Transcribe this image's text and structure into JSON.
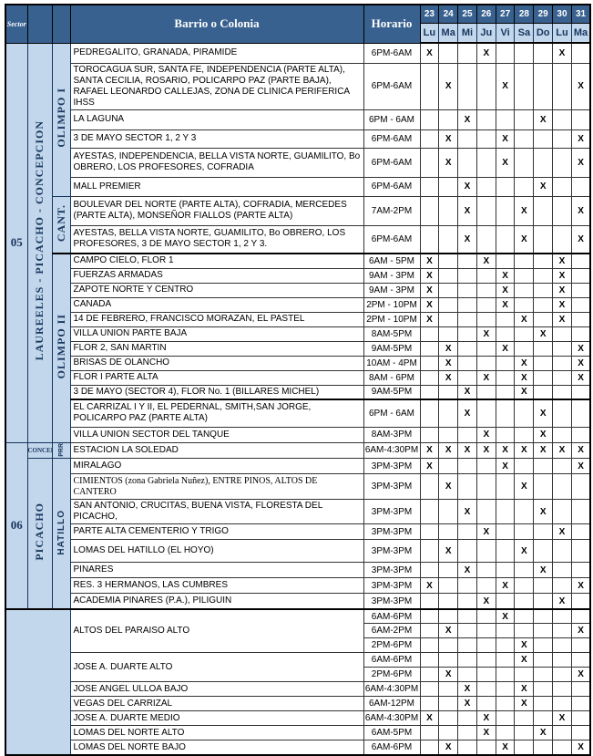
{
  "header": {
    "sector_label": "Sector",
    "barrio_label": "Barrio o Colonia",
    "horario_label": "Horario",
    "dates": [
      "23",
      "24",
      "25",
      "26",
      "27",
      "28",
      "29",
      "30",
      "31"
    ],
    "days": [
      "Lu",
      "Ma",
      "Mi",
      "Ju",
      "Vi",
      "Sa",
      "Do",
      "Lu",
      "Ma"
    ]
  },
  "mark_glyph": "X",
  "colors": {
    "header_bg": "#38618F",
    "light_blue": "#C2D6EC",
    "navy_text": "#17365D",
    "mark_color": "#000000"
  },
  "left_labels": [
    {
      "col": 0,
      "start": 0,
      "span": 20,
      "text": "05",
      "style": "sector-num",
      "name": "sector-05"
    },
    {
      "col": 0,
      "start": 20,
      "span": 9,
      "text": "06",
      "style": "sector-num",
      "name": "sector-06"
    },
    {
      "col": 1,
      "start": 0,
      "span": 20,
      "text": "LAUREELES - PICACHO - CONCEPCION",
      "style": "vlabel",
      "name": "zone-laureeles-picacho-concepcion"
    },
    {
      "col": 1,
      "start": 20,
      "span": 1,
      "text": "CONCEP",
      "style": "hsmall",
      "name": "zone-concep"
    },
    {
      "col": 1,
      "start": 21,
      "span": 8,
      "text": "PICACHO",
      "style": "vlabel",
      "name": "zone-picacho"
    },
    {
      "col": 2,
      "start": 0,
      "span": 6,
      "text": "OLIMPO I",
      "style": "vlabel",
      "name": "subzone-olimpo-1"
    },
    {
      "col": 2,
      "start": 6,
      "span": 2,
      "text": "CANT.",
      "style": "vlabel",
      "name": "subzone-cant"
    },
    {
      "col": 2,
      "start": 8,
      "span": 12,
      "text": "OLIMPO II",
      "style": "vlabel",
      "name": "subzone-olimpo-2"
    },
    {
      "col": 2,
      "start": 20,
      "span": 1,
      "text": "PRR",
      "style": "vsmall",
      "name": "subzone-prr"
    },
    {
      "col": 2,
      "start": 21,
      "span": 8,
      "text": "HATILLO",
      "style": "vlabel-sans",
      "name": "subzone-hatillo"
    },
    {
      "col": 0,
      "start": 29,
      "span": 10,
      "colspan": 3,
      "text": "",
      "style": "blank-merged",
      "name": "bottom-left-blank"
    }
  ],
  "rows": [
    {
      "barrio": "PEDREGALITO, GRANADA, PIRAMIDE",
      "barrio_span": 1,
      "horario": "6PM-6AM",
      "marks": [
        1,
        0,
        0,
        1,
        0,
        0,
        0,
        1,
        0
      ]
    },
    {
      "barrio": "TOROCAGUA SUR, SANTA FE, INDEPENDENCIA (PARTE ALTA), SANTA CECILIA, ROSARIO, POLICARPO PAZ (PARTE BAJA), RAFAEL LEONARDO CALLEJAS, ZONA DE CLINICA PERIFERICA IHSS",
      "barrio_span": 1,
      "horario": "6PM-6AM",
      "marks": [
        0,
        1,
        0,
        0,
        1,
        0,
        0,
        0,
        1
      ]
    },
    {
      "barrio": "LA LAGUNA",
      "barrio_span": 1,
      "horario": "6PM - 6AM",
      "marks": [
        0,
        0,
        1,
        0,
        0,
        0,
        1,
        0,
        0
      ]
    },
    {
      "barrio": "3 DE MAYO SECTOR 1, 2 Y 3",
      "barrio_span": 1,
      "horario": "6PM-6AM",
      "marks": [
        0,
        1,
        0,
        0,
        1,
        0,
        0,
        0,
        1
      ]
    },
    {
      "barrio": "AYESTAS, INDEPENDENCIA, BELLA VISTA NORTE, GUAMILITO, Bo OBRERO, LOS PROFESORES, COFRADIA",
      "barrio_span": 1,
      "horario": "6PM-6AM",
      "marks": [
        0,
        1,
        0,
        0,
        1,
        0,
        0,
        0,
        1
      ]
    },
    {
      "barrio": "MALL PREMIER",
      "barrio_span": 1,
      "horario": "6PM-6AM",
      "marks": [
        0,
        0,
        1,
        0,
        0,
        0,
        1,
        0,
        0
      ]
    },
    {
      "barrio": "BOULEVAR DEL NORTE (PARTE ALTA), COFRADIA, MERCEDES (PARTE ALTA), MONSEÑOR FIALLOS (PARTE ALTA)",
      "barrio_span": 1,
      "horario": "7AM-2PM",
      "marks": [
        0,
        0,
        1,
        0,
        0,
        1,
        0,
        0,
        1
      ]
    },
    {
      "barrio": "AYESTAS, BELLA VISTA NORTE, GUAMILITO, Bo OBRERO, LOS PROFESORES, 3 DE MAYO SECTOR 1, 2 Y 3.",
      "barrio_span": 1,
      "horario": "6PM-6AM",
      "marks": [
        0,
        0,
        1,
        0,
        0,
        1,
        0,
        0,
        1
      ]
    },
    {
      "barrio": "CAMPO CIELO, FLOR 1",
      "barrio_span": 1,
      "horario": "6AM - 5PM",
      "marks": [
        1,
        0,
        0,
        1,
        0,
        0,
        0,
        1,
        0
      ]
    },
    {
      "barrio": "FUERZAS ARMADAS",
      "barrio_span": 1,
      "horario": "9AM - 3PM",
      "marks": [
        1,
        0,
        0,
        0,
        1,
        0,
        0,
        1,
        0
      ]
    },
    {
      "barrio": "ZAPOTE NORTE Y CENTRO",
      "barrio_span": 1,
      "horario": "9AM - 3PM",
      "marks": [
        1,
        0,
        0,
        0,
        1,
        0,
        0,
        1,
        0
      ]
    },
    {
      "barrio": "CANADA",
      "barrio_span": 1,
      "horario": "2PM - 10PM",
      "marks": [
        1,
        0,
        0,
        0,
        1,
        0,
        0,
        1,
        0
      ]
    },
    {
      "barrio": "14 DE FEBRERO, FRANCISCO MORAZAN, EL PASTEL",
      "barrio_span": 1,
      "horario": "2PM - 10PM",
      "marks": [
        1,
        0,
        0,
        0,
        0,
        1,
        0,
        1,
        0
      ]
    },
    {
      "barrio": "VILLA UNION PARTE BAJA",
      "barrio_span": 1,
      "horario": "8AM-5PM",
      "marks": [
        0,
        0,
        0,
        1,
        0,
        0,
        1,
        0,
        0
      ]
    },
    {
      "barrio": "FLOR 2, SAN MARTIN",
      "barrio_span": 1,
      "horario": "9AM-5PM",
      "marks": [
        0,
        1,
        0,
        0,
        1,
        0,
        0,
        0,
        1
      ]
    },
    {
      "barrio": "BRISAS DE OLANCHO",
      "barrio_span": 1,
      "horario": "10AM - 4PM",
      "marks": [
        0,
        1,
        0,
        0,
        0,
        1,
        0,
        0,
        1
      ]
    },
    {
      "barrio": "FLOR I  PARTE ALTA",
      "barrio_span": 1,
      "horario": "8AM - 6PM",
      "marks": [
        0,
        1,
        0,
        1,
        0,
        1,
        0,
        0,
        1
      ]
    },
    {
      "barrio": "3 DE MAYO (SECTOR 4), FLOR No. 1 (BILLARES MICHEL)",
      "barrio_span": 1,
      "horario": "9AM-5PM",
      "marks": [
        0,
        0,
        1,
        0,
        0,
        1,
        0,
        0,
        0
      ]
    },
    {
      "barrio": "EL CARRIZAL I Y II, EL PEDERNAL, SMITH,SAN JORGE, POLICARPO PAZ (PARTE ALTA)",
      "barrio_span": 1,
      "horario": "6PM - 6AM",
      "marks": [
        0,
        0,
        1,
        0,
        0,
        0,
        1,
        0,
        0
      ]
    },
    {
      "barrio": "VILLA UNION SECTOR DEL TANQUE",
      "barrio_span": 1,
      "horario": "8AM-3PM",
      "marks": [
        0,
        0,
        0,
        1,
        0,
        0,
        1,
        0,
        0
      ]
    },
    {
      "barrio": "ESTACION LA SOLEDAD",
      "barrio_span": 1,
      "horario": "6AM-4:30PM",
      "marks": [
        1,
        1,
        1,
        1,
        1,
        1,
        1,
        1,
        1
      ]
    },
    {
      "barrio": "MIRALAGO",
      "barrio_span": 1,
      "horario": "3PM-3PM",
      "marks": [
        1,
        0,
        0,
        0,
        1,
        0,
        0,
        0,
        1
      ]
    },
    {
      "barrio": "CIMIENTOS (zona Gabriela Nuñez), ENTRE PINOS, ALTOS DE CANTERO",
      "barrio_span": 1,
      "horario": "3PM-3PM",
      "marks": [
        0,
        1,
        0,
        0,
        0,
        1,
        0,
        0,
        0
      ],
      "serif": true
    },
    {
      "barrio": "SAN ANTONIO, CRUCITAS, BUENA VISTA, FLORESTA DEL PICACHO,",
      "barrio_span": 1,
      "horario": "3PM-3PM",
      "marks": [
        0,
        0,
        1,
        0,
        0,
        0,
        1,
        0,
        0
      ]
    },
    {
      "barrio": "PARTE ALTA CEMENTERIO Y TRIGO",
      "barrio_span": 1,
      "horario": "3PM-3PM",
      "marks": [
        0,
        0,
        0,
        1,
        0,
        0,
        0,
        1,
        0
      ]
    },
    {
      "barrio": "LOMAS DEL HATILLO (EL HOYO)",
      "barrio_span": 1,
      "horario": "3PM-3PM",
      "marks": [
        0,
        1,
        0,
        0,
        0,
        1,
        0,
        0,
        0
      ]
    },
    {
      "barrio": "PINARES",
      "barrio_span": 1,
      "horario": "3PM-3PM",
      "marks": [
        0,
        0,
        1,
        0,
        0,
        0,
        1,
        0,
        0
      ]
    },
    {
      "barrio": "RES. 3 HERMANOS, LAS CUMBRES",
      "barrio_span": 1,
      "horario": "3PM-3PM",
      "marks": [
        1,
        0,
        0,
        0,
        1,
        0,
        0,
        0,
        1
      ]
    },
    {
      "barrio": "ACADEMIA PINARES (P.A.), PILIGUIN",
      "barrio_span": 1,
      "horario": "3PM-3PM",
      "marks": [
        0,
        0,
        0,
        1,
        0,
        0,
        0,
        1,
        0
      ]
    },
    {
      "barrio": "ALTOS DEL PARAISO ALTO",
      "barrio_span": 3,
      "horario": "6AM-6PM",
      "marks": [
        0,
        0,
        0,
        0,
        1,
        0,
        0,
        0,
        0
      ]
    },
    {
      "barrio": "",
      "barrio_span": 0,
      "horario": "6AM-2PM",
      "marks": [
        0,
        1,
        0,
        0,
        0,
        0,
        0,
        0,
        1
      ]
    },
    {
      "barrio": "",
      "barrio_span": 0,
      "horario": "2PM-6PM",
      "marks": [
        0,
        0,
        0,
        0,
        0,
        1,
        0,
        0,
        0
      ]
    },
    {
      "barrio": "JOSE A. DUARTE ALTO",
      "barrio_span": 2,
      "horario": "6AM-6PM",
      "marks": [
        0,
        0,
        0,
        0,
        0,
        1,
        0,
        0,
        0
      ]
    },
    {
      "barrio": "",
      "barrio_span": 0,
      "horario": "2PM-6PM",
      "marks": [
        0,
        1,
        0,
        0,
        0,
        0,
        0,
        0,
        1
      ]
    },
    {
      "barrio": "JOSE ANGEL ULLOA BAJO",
      "barrio_span": 1,
      "horario": "6AM-4:30PM",
      "marks": [
        0,
        0,
        1,
        0,
        0,
        1,
        0,
        0,
        0
      ]
    },
    {
      "barrio": "VEGAS DEL CARRIZAL",
      "barrio_span": 1,
      "horario": "6AM-12PM",
      "marks": [
        0,
        0,
        1,
        0,
        0,
        1,
        0,
        0,
        0
      ]
    },
    {
      "barrio": "JOSE A. DUARTE MEDIO",
      "barrio_span": 1,
      "horario": "6AM-4:30PM",
      "marks": [
        1,
        0,
        0,
        1,
        0,
        0,
        0,
        1,
        0
      ]
    },
    {
      "barrio": "LOMAS DEL NORTE ALTO",
      "barrio_span": 1,
      "horario": "6AM-5PM",
      "marks": [
        0,
        0,
        0,
        1,
        0,
        0,
        1,
        0,
        0
      ]
    },
    {
      "barrio": "LOMAS DEL NORTE BAJO",
      "barrio_span": 1,
      "horario": "6AM-6PM",
      "marks": [
        0,
        1,
        0,
        0,
        1,
        0,
        0,
        0,
        1
      ]
    }
  ]
}
